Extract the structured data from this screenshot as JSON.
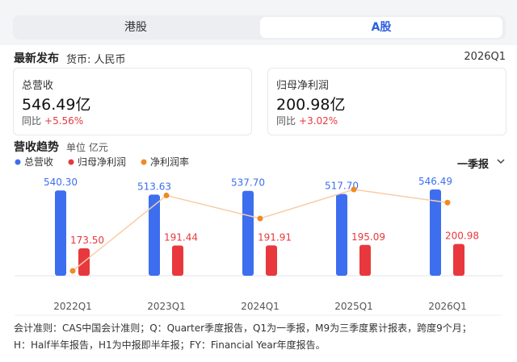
{
  "tabs": [
    "港股",
    "A股"
  ],
  "header": {
    "label": "最新发布",
    "currency": "货币: 人民币",
    "period": "2026Q1"
  },
  "cards": [
    {
      "label": "总营收",
      "value": "546.49亿",
      "yoy_label": "同比",
      "yoy": "+5.56%"
    },
    {
      "label": "归母净利润",
      "value": "200.98亿",
      "yoy_label": "同比",
      "yoy": "+3.02%"
    }
  ],
  "section": {
    "title": "营收趋势",
    "unit": "单位  亿元",
    "dropdown": "一季报"
  },
  "chart_data": {
    "type": "bar",
    "categories": [
      "2022Q1",
      "2023Q1",
      "2024Q1",
      "2025Q1",
      "2026Q1"
    ],
    "series": [
      {
        "name": "总营收",
        "color": "#3d6ef0",
        "values": [
          540.3,
          513.63,
          537.7,
          517.7,
          546.49
        ],
        "value_labels": [
          "540.30",
          "513.63",
          "537.70",
          "517.70",
          "546.49"
        ]
      },
      {
        "name": "归母净利润",
        "color": "#e8383d",
        "values": [
          173.5,
          191.44,
          191.91,
          195.09,
          200.98
        ],
        "value_labels": [
          "173.50",
          "191.44",
          "191.91",
          "195.09",
          "200.98"
        ]
      },
      {
        "name": "净利润率",
        "color": "#f08a24",
        "type": "line",
        "values": [
          32.1,
          37.27,
          35.69,
          37.68,
          36.78
        ]
      }
    ]
  },
  "notes": [
    "会计准则：CAS中国会计准则；Q：Quarter季度报告，Q1为一季报，M9为三季度累计报表，跨度9个月；",
    "H：Half半年报告，H1为中报即半年报；FY：Financial Year年度报告。"
  ]
}
